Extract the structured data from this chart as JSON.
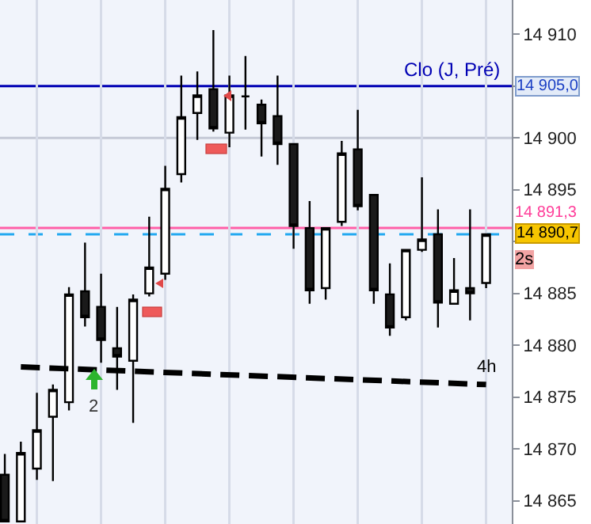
{
  "chart_data": {
    "type": "candlestick",
    "categories": [
      null,
      null,
      null,
      null,
      null,
      null,
      null,
      null,
      null,
      null,
      null,
      null,
      null,
      null,
      null,
      null,
      null,
      null,
      null,
      null,
      null,
      null,
      null,
      null,
      null,
      null,
      null,
      null,
      null,
      null,
      null
    ],
    "ohlc": [
      [
        14867.5,
        14869.5,
        14863.0,
        14863.0
      ],
      [
        14863.0,
        14870.7,
        14863.0,
        14869.6
      ],
      [
        14868.1,
        14875.4,
        14867.0,
        14871.8
      ],
      [
        14873.1,
        14876.2,
        14866.9,
        14875.7
      ],
      [
        14874.5,
        14885.6,
        14873.7,
        14884.9
      ],
      [
        14885.2,
        14889.9,
        14881.8,
        14882.7
      ],
      [
        14883.7,
        14886.9,
        14878.3,
        14880.5
      ],
      [
        14879.7,
        14883.7,
        14875.7,
        14878.9
      ],
      [
        14878.5,
        14884.9,
        14872.5,
        14884.4
      ],
      [
        14885.0,
        14892.4,
        14884.7,
        14887.5
      ],
      [
        14886.9,
        14897.3,
        14886.3,
        14895.1
      ],
      [
        14896.5,
        14906.0,
        14895.7,
        14902.0
      ],
      [
        14902.4,
        14906.4,
        14899.8,
        14904.1
      ],
      [
        14904.7,
        14910.4,
        14900.6,
        14900.9
      ],
      [
        14900.5,
        14906.0,
        14899.1,
        14904.1
      ],
      [
        14904.0,
        14907.9,
        14900.8,
        14904.0
      ],
      [
        14903.2,
        14903.7,
        14898.2,
        14901.4
      ],
      [
        14902.1,
        14906.0,
        14897.4,
        14899.4
      ],
      [
        14899.4,
        14899.4,
        14889.3,
        14891.5
      ],
      [
        14891.3,
        14893.9,
        14884.0,
        14885.3
      ],
      [
        14885.5,
        14891.3,
        14884.4,
        14891.3
      ],
      [
        14891.9,
        14899.7,
        14891.5,
        14898.5
      ],
      [
        14898.9,
        14902.7,
        14893.0,
        14893.4
      ],
      [
        14894.5,
        14894.5,
        14884.0,
        14885.3
      ],
      [
        14884.9,
        14887.9,
        14880.9,
        14881.7
      ],
      [
        14882.7,
        14889.2,
        14882.4,
        14889.2
      ],
      [
        14889.2,
        14896.2,
        14889.0,
        14890.2
      ],
      [
        14890.7,
        14893.1,
        14881.7,
        14884.1
      ],
      [
        14884.0,
        14888.4,
        14884.0,
        14885.3
      ],
      [
        14885.5,
        14893.1,
        14882.4,
        14885.0
      ],
      [
        14886.0,
        14890.7,
        14885.5,
        14890.7
      ]
    ],
    "series": [
      {
        "type": "line",
        "name": "4h",
        "values": [
          null,
          14877.9,
          null,
          null,
          null,
          null,
          null,
          null,
          null,
          null,
          null,
          null,
          null,
          null,
          null,
          null,
          null,
          null,
          null,
          null,
          null,
          null,
          null,
          null,
          null,
          null,
          null,
          null,
          null,
          null,
          14876.2
        ],
        "color": "#000000",
        "line_style": "dashed"
      }
    ],
    "ylim": [
      14862.75,
      14913.3
    ],
    "yticks": [
      {
        "value": 14865,
        "label": "14 865"
      },
      {
        "value": 14870,
        "label": "14 870"
      },
      {
        "value": 14875,
        "label": "14 875"
      },
      {
        "value": 14880,
        "label": "14 880"
      },
      {
        "value": 14885,
        "label": "14 885"
      },
      {
        "value": 14890,
        "label": null
      },
      {
        "value": 14895,
        "label": "14 895"
      },
      {
        "value": 14900,
        "label": "14 900"
      },
      {
        "value": 14905,
        "label": null
      },
      {
        "value": 14910,
        "label": "14 910"
      }
    ],
    "tick_labels": "y",
    "grid": "x",
    "ref_lines": [
      {
        "axis": "y",
        "value": 14900,
        "color": "#c5c9d6",
        "line_style": "solid"
      },
      {
        "axis": "y",
        "value": 14905.0,
        "label": "Clo (J, Pré)",
        "color": "#0000b4",
        "line_style": "solid"
      },
      {
        "axis": "y",
        "value": 14891.3,
        "color": "#ff5fa8",
        "line_style": "solid"
      },
      {
        "axis": "y",
        "value": 14890.7,
        "color": "#22a8f0",
        "line_style": "dashed"
      }
    ],
    "annotations": [
      {
        "text": "14 905,0",
        "y": 14905.0
      },
      "14 891,3",
      "14 890,7",
      "2s",
      "2"
    ]
  }
}
